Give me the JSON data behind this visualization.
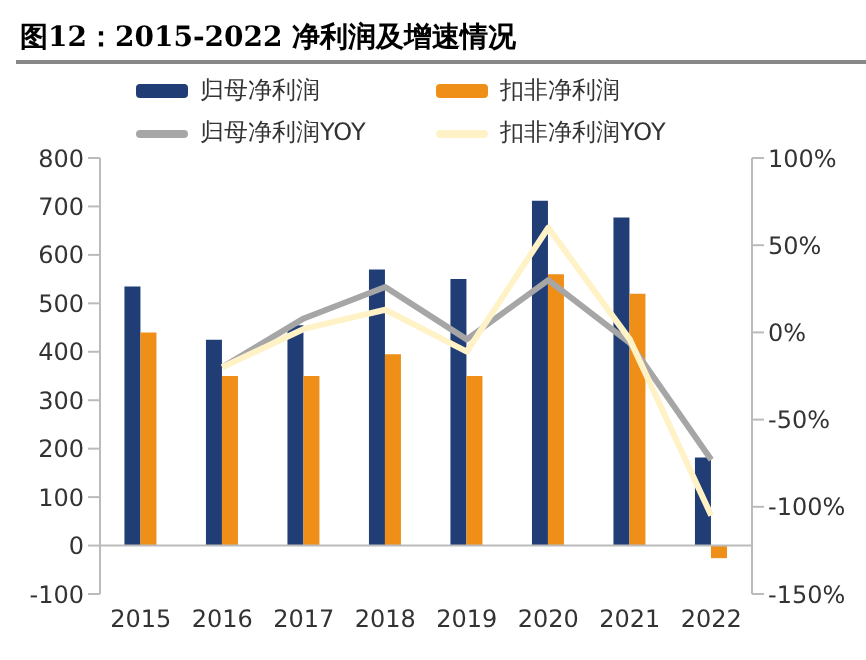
{
  "chart_data": {
    "type": "bar",
    "title": "图12：2015-2022 净利润及增速情况",
    "categories": [
      "2015",
      "2016",
      "2017",
      "2018",
      "2019",
      "2020",
      "2021",
      "2022"
    ],
    "series": [
      {
        "name": "归母净利润",
        "color": "#203e75",
        "values": [
          535,
          425,
          455,
          570,
          550,
          712,
          677,
          182
        ]
      },
      {
        "name": "扣非净利润",
        "color": "#ef8f18",
        "values": [
          440,
          350,
          350,
          395,
          350,
          560,
          520,
          -26
        ]
      },
      {
        "name": "归母净利润YOY",
        "type": "line",
        "axis": "y2",
        "color": "#a6a6a6",
        "values": [
          null,
          -20,
          8,
          26,
          -4,
          30,
          -6,
          -73
        ]
      },
      {
        "name": "扣非净利润YOY",
        "type": "line",
        "axis": "y2",
        "color": "#fff2c7",
        "values": [
          null,
          -20,
          2,
          13,
          -11,
          60,
          -4,
          -105
        ]
      }
    ],
    "ylim": [
      -100,
      800
    ],
    "yticks": [
      -100,
      0,
      100,
      200,
      300,
      400,
      500,
      600,
      700,
      800
    ],
    "y2lim": [
      -150,
      100
    ],
    "y2ticks": [
      {
        "value": -150,
        "label": "-150%"
      },
      {
        "value": -100,
        "label": "-100%"
      },
      {
        "value": -50,
        "label": "-50%"
      },
      {
        "value": 0,
        "label": "0%"
      },
      {
        "value": 50,
        "label": "50%"
      },
      {
        "value": 100,
        "label": "100%"
      }
    ],
    "legend": "top",
    "grid": false,
    "marker": "none"
  }
}
